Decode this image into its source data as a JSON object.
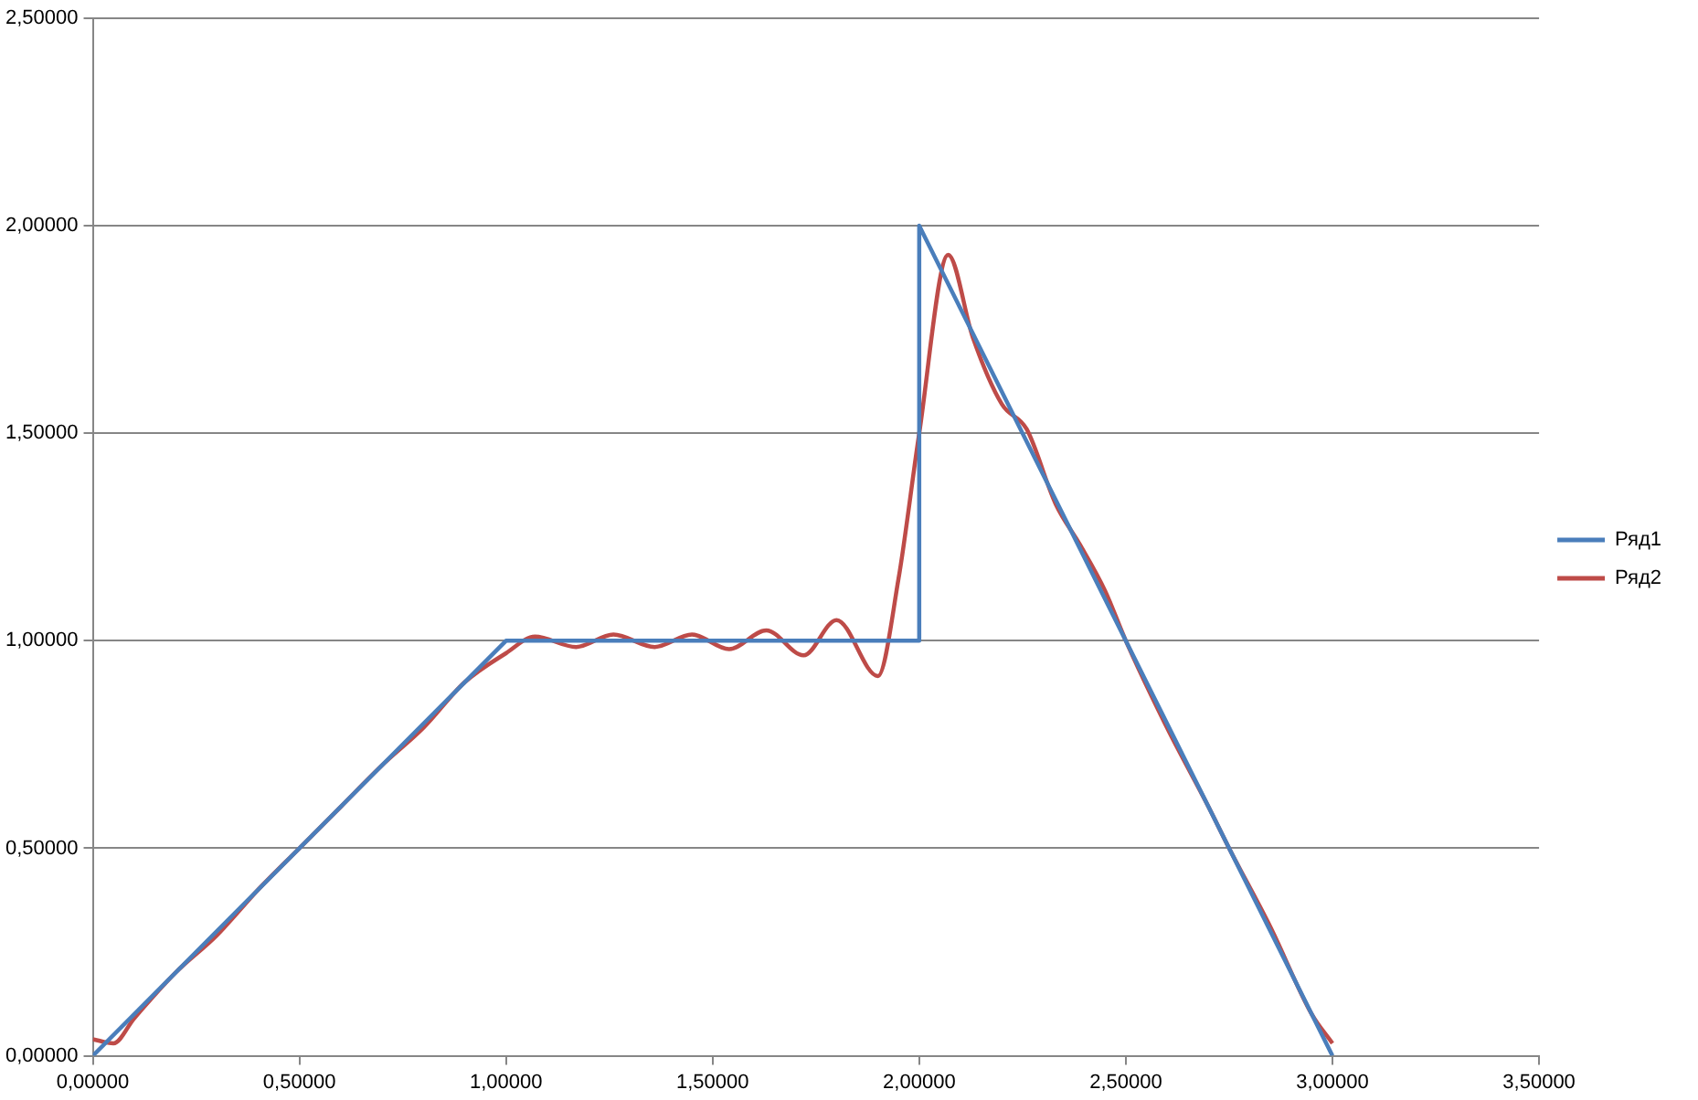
{
  "chart_data": {
    "type": "line",
    "xlim": [
      0,
      3.5
    ],
    "ylim": [
      0,
      2.5
    ],
    "xticks": [
      {
        "value": 0,
        "label": "0,00000"
      },
      {
        "value": 0.5,
        "label": "0,50000"
      },
      {
        "value": 1,
        "label": "1,00000"
      },
      {
        "value": 1.5,
        "label": "1,50000"
      },
      {
        "value": 2,
        "label": "2,00000"
      },
      {
        "value": 2.5,
        "label": "2,50000"
      },
      {
        "value": 3,
        "label": "3,00000"
      },
      {
        "value": 3.5,
        "label": "3,50000"
      }
    ],
    "yticks": [
      {
        "value": 0,
        "label": "0,00000"
      },
      {
        "value": 0.5,
        "label": "0,50000"
      },
      {
        "value": 1,
        "label": "1,00000"
      },
      {
        "value": 1.5,
        "label": "1,50000"
      },
      {
        "value": 2,
        "label": "2,00000"
      },
      {
        "value": 2.5,
        "label": "2,50000"
      }
    ],
    "grid": "y",
    "legend": "right",
    "marker": "none",
    "line_style": "solid",
    "series": [
      {
        "name": "Ряд1",
        "color": "#4a7ebb",
        "x": [
          0,
          1,
          2,
          2,
          3
        ],
        "values": [
          0,
          1,
          1,
          2,
          0
        ]
      },
      {
        "name": "Ряд2",
        "color": "#be4b48",
        "x": [
          0,
          0.05,
          0.1,
          0.2,
          0.3,
          0.4,
          0.5,
          0.6,
          0.7,
          0.8,
          0.9,
          1.0,
          1.07,
          1.17,
          1.26,
          1.36,
          1.45,
          1.54,
          1.63,
          1.72,
          1.8,
          1.9,
          1.95,
          2.0,
          2.07,
          2.13,
          2.2,
          2.26,
          2.33,
          2.39,
          2.45,
          2.5,
          2.6,
          2.7,
          2.75,
          2.85,
          2.95,
          3.0
        ],
        "values": [
          0.04,
          0.03,
          0.09,
          0.2,
          0.29,
          0.4,
          0.5,
          0.6,
          0.7,
          0.79,
          0.9,
          0.97,
          1.01,
          0.985,
          1.015,
          0.985,
          1.015,
          0.98,
          1.025,
          0.965,
          1.05,
          0.915,
          1.15,
          1.5,
          1.93,
          1.73,
          1.57,
          1.51,
          1.33,
          1.23,
          1.12,
          1.0,
          0.79,
          0.6,
          0.5,
          0.31,
          0.1,
          0.03
        ]
      }
    ]
  }
}
